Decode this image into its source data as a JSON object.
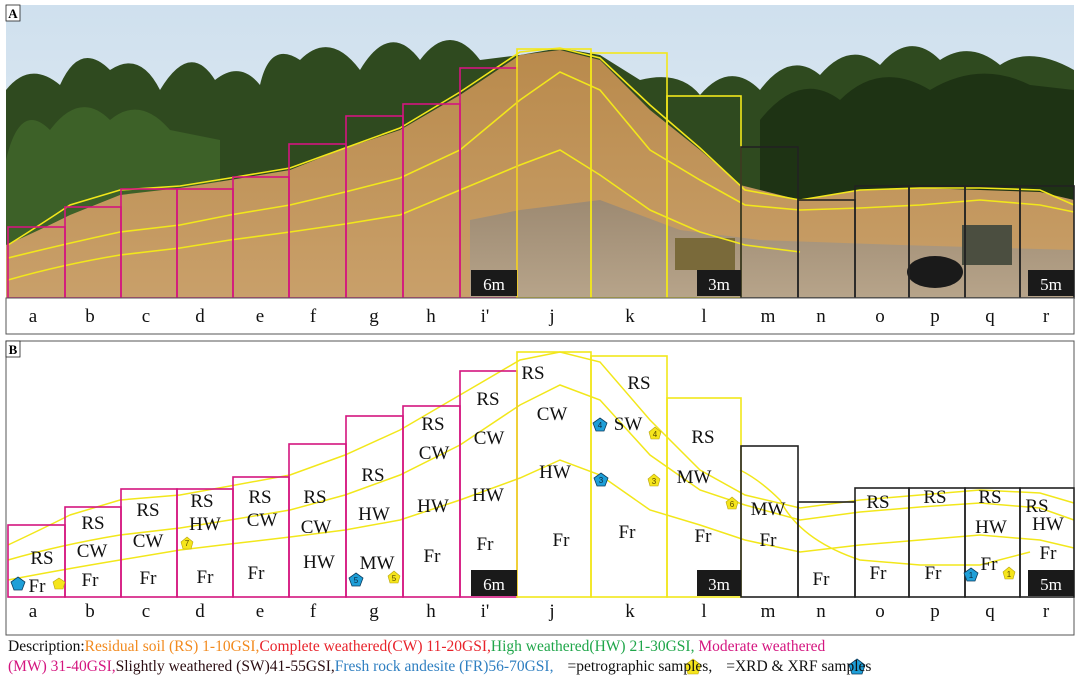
{
  "panel_a": {
    "label": "A",
    "column_labels": [
      "a",
      "b",
      "c",
      "d",
      "e",
      "f",
      "g",
      "h",
      "i'",
      "j",
      "k",
      "l",
      "m",
      "n",
      "o",
      "p",
      "q",
      "r"
    ],
    "scale_labels": [
      "6m",
      "3m",
      "5m"
    ]
  },
  "panel_b": {
    "label": "B",
    "column_labels": [
      "a",
      "b",
      "c",
      "d",
      "e",
      "f",
      "g",
      "h",
      "i'",
      "j",
      "k",
      "l",
      "m",
      "n",
      "o",
      "p",
      "q",
      "r"
    ],
    "scale_labels": [
      "6m",
      "3m",
      "5m"
    ],
    "zones": {
      "rs": "RS",
      "cw": "CW",
      "hw": "HW",
      "mw": "MW",
      "sw": "SW",
      "fr": "Fr"
    },
    "sample_numbers": {
      "p7": "7",
      "p5": "5",
      "p4": "4",
      "p3": "3",
      "p6": "6",
      "p1": "1",
      "x5": "5",
      "x4": "4",
      "x3": "3",
      "x1": "1"
    }
  },
  "description": {
    "prefix": "Description:",
    "rs": "Residual soil (RS) 1-10GSI,",
    "cw": "Complete weathered(CW) 11-20GSI,",
    "hw": "High weathered(HW) 21-30GSI,",
    "mw_a": "Moderate weathered",
    "mw_b": "(MW) 31-40GSI,",
    "sw": "Slightly weathered (SW)41-55GSI,",
    "fr": "Fresh rock andesite (FR)56-70GSI,",
    "petro": "=petrographic samples,",
    "xrd": "=XRD & XRF samples"
  },
  "colors": {
    "magenta_box": "#d4157f",
    "yellow_box": "#f2e71b",
    "black_box": "#222222",
    "rs": "#f28a1e",
    "cw": "#e8232b",
    "hw": "#1fa64a",
    "mw": "#d4157f",
    "sw": "#2b0d12",
    "fr": "#2f7fc1",
    "pentagon_yellow": "#f5e51c",
    "pentagon_blue": "#1e9fd8"
  }
}
